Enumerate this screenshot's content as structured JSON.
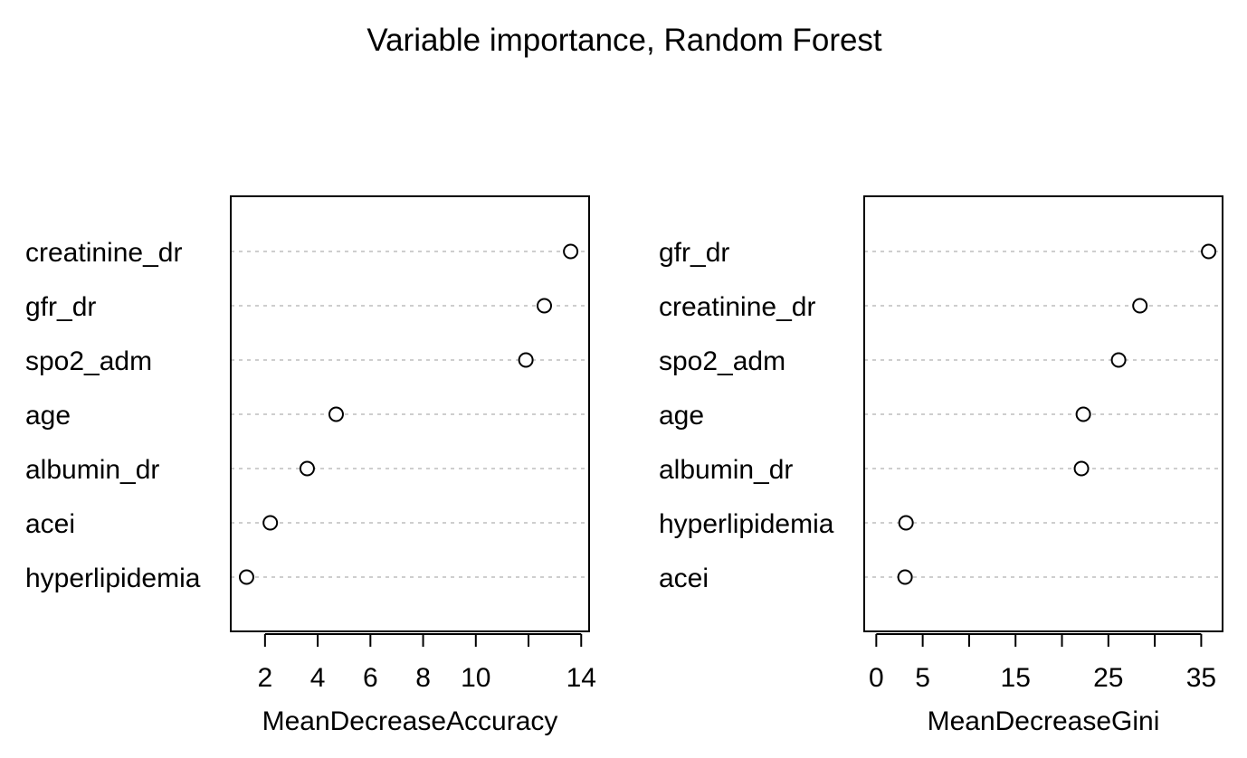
{
  "title": "Variable importance, Random Forest",
  "colors": {
    "frame": "#000000",
    "gridline": "#bebebe",
    "point_stroke": "#000000",
    "point_fill": "#ffffff",
    "text": "#000000"
  },
  "chart_data": [
    {
      "type": "scatter",
      "style": "dotchart",
      "xlabel": "MeanDecreaseAccuracy",
      "ylabel": "",
      "xlim": [
        0.7,
        14.3
      ],
      "xticks": [
        2,
        4,
        6,
        8,
        10,
        12,
        14
      ],
      "xtick_labels": [
        "2",
        "4",
        "6",
        "8",
        "10",
        "",
        "14"
      ],
      "grid": "horizontal dotted",
      "categories": [
        "creatinine_dr",
        "gfr_dr",
        "spo2_adm",
        "age",
        "albumin_dr",
        "acei",
        "hyperlipidemia"
      ],
      "values": [
        13.6,
        12.6,
        11.9,
        4.7,
        3.6,
        2.2,
        1.3
      ]
    },
    {
      "type": "scatter",
      "style": "dotchart",
      "xlabel": "MeanDecreaseGini",
      "ylabel": "",
      "xlim": [
        -1.3,
        37.3
      ],
      "xticks": [
        0,
        5,
        10,
        15,
        20,
        25,
        30,
        35
      ],
      "xtick_labels": [
        "0",
        "5",
        "",
        "15",
        "",
        "25",
        "",
        "35"
      ],
      "grid": "horizontal dotted",
      "categories": [
        "gfr_dr",
        "creatinine_dr",
        "spo2_adm",
        "age",
        "albumin_dr",
        "hyperlipidemia",
        "acei"
      ],
      "values": [
        35.8,
        28.4,
        26.1,
        22.3,
        22.1,
        3.2,
        3.1
      ]
    }
  ]
}
